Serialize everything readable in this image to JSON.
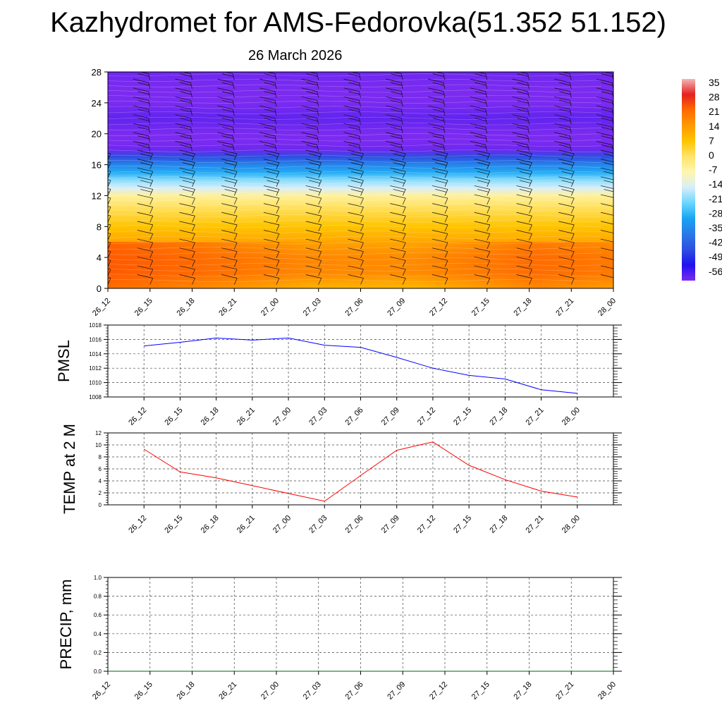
{
  "header": {
    "title": "Kazhydromet for AMS-Fedorovka(51.352 51.152)",
    "subtitle": "26 March 2026"
  },
  "colorbar": {
    "labels": [
      "35",
      "28",
      "21",
      "14",
      "7",
      "0",
      "-7",
      "-14",
      "-21",
      "-28",
      "-35",
      "-42",
      "-49",
      "-56"
    ],
    "colors": [
      "#f2b6b6",
      "#e52020",
      "#ff6a00",
      "#ff9a00",
      "#ffc400",
      "#ffe46a",
      "#fff6b0",
      "#d8eef8",
      "#6ad6ff",
      "#17a4f2",
      "#2b78e8",
      "#2d4fe0",
      "#2011ee",
      "#7b2bf0"
    ]
  },
  "chart_data": [
    {
      "type": "heatmap",
      "name": "upper-air-temperature-cross-section",
      "title": "",
      "xlabel": "",
      "ylabel": "",
      "x_ticks": [
        "26_12",
        "26_15",
        "26_18",
        "26_21",
        "27_00",
        "27_03",
        "27_06",
        "27_09",
        "27_12",
        "27_15",
        "27_18",
        "27_21",
        "28_00"
      ],
      "y_ticks": [
        0,
        4,
        8,
        12,
        16,
        20,
        24,
        28
      ],
      "ylim": [
        0,
        28
      ],
      "levels": [
        0,
        2,
        4,
        6,
        8,
        10,
        12,
        13,
        14,
        15,
        16,
        17,
        18,
        19,
        20,
        22,
        24,
        26,
        28
      ],
      "level_temps": [
        9,
        16,
        16,
        12,
        7,
        2,
        -5,
        -14,
        -19,
        -27,
        -33,
        -42,
        -55,
        -59,
        -56,
        -54,
        -58,
        -57,
        -55
      ]
    },
    {
      "type": "line",
      "name": "pmsl",
      "ylabel": "PMSL",
      "x": [
        "26_12",
        "26_15",
        "26_18",
        "26_21",
        "27_00",
        "27_03",
        "27_06",
        "27_09",
        "27_12",
        "27_15",
        "27_18",
        "27_21",
        "28_00"
      ],
      "values": [
        1015.1,
        1015.6,
        1016.2,
        1015.9,
        1016.2,
        1015.2,
        1014.9,
        1013.5,
        1012.0,
        1011.0,
        1010.5,
        1009.0,
        1008.5
      ],
      "ylim": [
        1008,
        1018
      ],
      "y_ticks": [
        1008,
        1010,
        1012,
        1014,
        1016,
        1018
      ],
      "color": "#0000ff"
    },
    {
      "type": "line",
      "name": "temp-2m",
      "ylabel": "TEMP at 2 M",
      "x": [
        "26_12",
        "26_15",
        "26_18",
        "26_21",
        "27_00",
        "27_03",
        "27_06",
        "27_09",
        "27_12",
        "27_15",
        "27_18",
        "27_21",
        "28_00"
      ],
      "values": [
        9.3,
        5.5,
        4.5,
        3.2,
        1.9,
        0.6,
        4.9,
        9.1,
        10.5,
        6.6,
        4.2,
        2.3,
        1.3
      ],
      "ylim": [
        0,
        12
      ],
      "y_ticks": [
        0,
        2,
        4,
        6,
        8,
        10,
        12
      ],
      "color": "#ff0000"
    },
    {
      "type": "line",
      "name": "precip",
      "ylabel": "PRECIP, mm",
      "x": [
        "26_12",
        "26_15",
        "26_18",
        "26_21",
        "27_00",
        "27_03",
        "27_06",
        "27_09",
        "27_12",
        "27_15",
        "27_18",
        "27_21",
        "28_00"
      ],
      "values": [
        0,
        0,
        0,
        0,
        0,
        0,
        0,
        0,
        0,
        0,
        0,
        0,
        0
      ],
      "ylim": [
        0,
        1.0
      ],
      "y_ticks": [
        "0.0",
        "0.2",
        "0.4",
        "0.6",
        "0.8",
        "1.0"
      ],
      "color": "#006400"
    }
  ]
}
